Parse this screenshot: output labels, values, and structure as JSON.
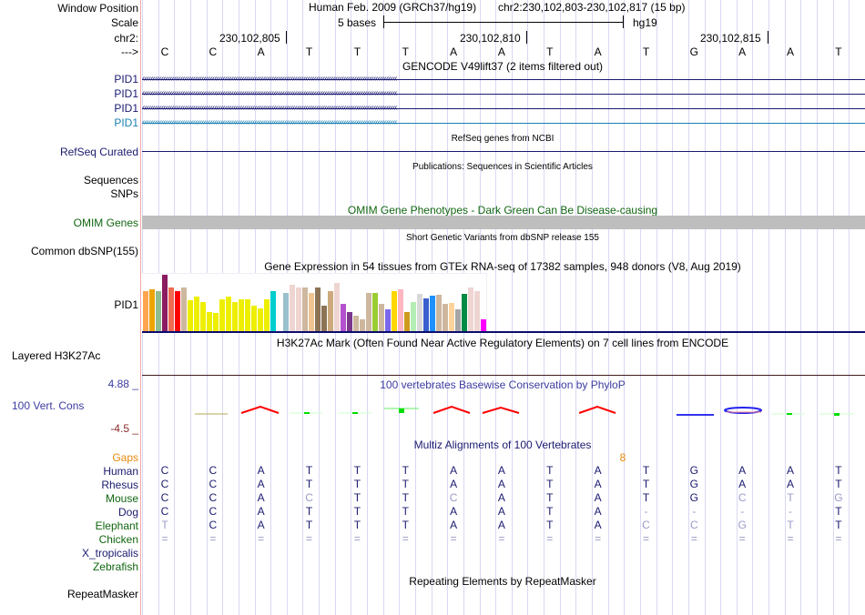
{
  "header": {
    "window_position_label": "Window Position",
    "scale_label": "Scale",
    "chrom_label": "chr2:",
    "strand_label": "--->",
    "assembly_title": "Human Feb. 2009 (GRCh37/hg19)",
    "position": "chr2:230,102,803-230,102,817 (15 bp)",
    "scale_text": "5 bases",
    "scale_db": "hg19",
    "ticks": [
      "230,102,805",
      "230,102,810",
      "230,102,815"
    ],
    "bases": [
      "C",
      "C",
      "A",
      "T",
      "T",
      "T",
      "A",
      "A",
      "T",
      "A",
      "T",
      "G",
      "A",
      "A",
      "T"
    ]
  },
  "tracks": {
    "gencode": {
      "title": "GENCODE V49lift37 (2 items filtered out)",
      "items": [
        "PID1",
        "PID1",
        "PID1",
        "PID1"
      ],
      "strand": "minus"
    },
    "refseq": {
      "label": "RefSeq Curated",
      "title": "RefSeq genes from NCBI"
    },
    "publications": {
      "title": "Publications: Sequences in Scientific Articles",
      "labels": [
        "Sequences",
        "SNPs"
      ]
    },
    "omim": {
      "label": "OMIM Genes",
      "title": "OMIM Gene Phenotypes - Dark Green Can Be Disease-causing"
    },
    "dbsnp": {
      "label": "Common dbSNP(155)",
      "title": "Short Genetic Variants from dbSNP release 155"
    },
    "gtex": {
      "label": "PID1",
      "title": "Gene Expression in 54 tissues from GTEx RNA-seq of 17382 samples, 948 donors (V8, Aug 2019)",
      "bars": [
        {
          "v": 0.72,
          "c": "#ffa54f"
        },
        {
          "v": 0.74,
          "c": "#eea400"
        },
        {
          "v": 0.71,
          "c": "#8fbc8f"
        },
        {
          "v": 1.0,
          "c": "#8b1c62"
        },
        {
          "v": 0.78,
          "c": "#ee6a50"
        },
        {
          "v": 0.71,
          "c": "#ff0000"
        },
        {
          "v": 0.77,
          "c": "#cdb79e"
        },
        {
          "v": 0.56,
          "c": "#eeee00"
        },
        {
          "v": 0.62,
          "c": "#eeee00"
        },
        {
          "v": 0.53,
          "c": "#eeee00"
        },
        {
          "v": 0.35,
          "c": "#eeee00"
        },
        {
          "v": 0.33,
          "c": "#eeee00"
        },
        {
          "v": 0.57,
          "c": "#eeee00"
        },
        {
          "v": 0.62,
          "c": "#eeee00"
        },
        {
          "v": 0.53,
          "c": "#eeee00"
        },
        {
          "v": 0.57,
          "c": "#eeee00"
        },
        {
          "v": 0.57,
          "c": "#eeee00"
        },
        {
          "v": 0.46,
          "c": "#eeee00"
        },
        {
          "v": 0.41,
          "c": "#eeee00"
        },
        {
          "v": 0.57,
          "c": "#eeee00"
        },
        {
          "v": 0.72,
          "c": "#00cdcd"
        },
        {
          "v": 0.0,
          "c": "#ffffff"
        },
        {
          "v": 0.69,
          "c": "#9ac0cd"
        },
        {
          "v": 0.83,
          "c": "#eed5d2"
        },
        {
          "v": 0.78,
          "c": "#eed5d2"
        },
        {
          "v": 0.78,
          "c": "#cdb79e"
        },
        {
          "v": 0.69,
          "c": "#eec591"
        },
        {
          "v": 0.78,
          "c": "#8b7355"
        },
        {
          "v": 0.46,
          "c": "#8b7355"
        },
        {
          "v": 0.72,
          "c": "#cdaa7d"
        },
        {
          "v": 0.85,
          "c": "#eed5d2"
        },
        {
          "v": 0.49,
          "c": "#b452cd"
        },
        {
          "v": 0.35,
          "c": "#7a378b"
        },
        {
          "v": 0.28,
          "c": "#cdb79e"
        },
        {
          "v": 0.22,
          "c": "#cdb79e"
        },
        {
          "v": 0.69,
          "c": "#cdb79e"
        },
        {
          "v": 0.69,
          "c": "#9acd32"
        },
        {
          "v": 0.49,
          "c": "#cdb79e"
        },
        {
          "v": 0.4,
          "c": "#7b68ee"
        },
        {
          "v": 0.72,
          "c": "#ffd700"
        },
        {
          "v": 0.74,
          "c": "#ffb6c1"
        },
        {
          "v": 0.35,
          "c": "#cd9b1d"
        },
        {
          "v": 0.53,
          "c": "#b4eeb4"
        },
        {
          "v": 0.67,
          "c": "#d9d9d9"
        },
        {
          "v": 0.59,
          "c": "#3a5fcd"
        },
        {
          "v": 0.64,
          "c": "#1e90ff"
        },
        {
          "v": 0.65,
          "c": "#cdb79e"
        },
        {
          "v": 0.49,
          "c": "#cdb79e"
        },
        {
          "v": 0.51,
          "c": "#ffd39b"
        },
        {
          "v": 0.4,
          "c": "#a6a6a6"
        },
        {
          "v": 0.67,
          "c": "#008b45"
        },
        {
          "v": 0.77,
          "c": "#eed5d2"
        },
        {
          "v": 0.72,
          "c": "#eed5d2"
        },
        {
          "v": 0.22,
          "c": "#ff00ff"
        }
      ]
    },
    "h3k27ac": {
      "label": "Layered H3K27Ac",
      "title": "H3K27Ac Mark (Often Found Near Active Regulatory Elements) on 7 cell lines from ENCODE"
    },
    "phylop": {
      "label": "100 Vert. Cons",
      "title": "100 vertebrates Basewise Conservation by PhyloP",
      "max": "4.88 _",
      "min": "-4.5 _"
    },
    "multiz": {
      "title": "Multiz Alignments of 100 Vertebrates",
      "gaps_label": "Gaps",
      "gap_count": "8",
      "species": [
        {
          "name": "Human",
          "color": "navy",
          "seq": [
            "C",
            "C",
            "A",
            "T",
            "T",
            "T",
            "A",
            "A",
            "T",
            "A",
            "T",
            "G",
            "A",
            "A",
            "T"
          ],
          "dim": []
        },
        {
          "name": "Rhesus",
          "color": "navy",
          "seq": [
            "C",
            "C",
            "A",
            "T",
            "T",
            "T",
            "A",
            "A",
            "T",
            "A",
            "T",
            "G",
            "A",
            "A",
            "T"
          ],
          "dim": []
        },
        {
          "name": "Mouse",
          "color": "green",
          "seq": [
            "C",
            "C",
            "A",
            "C",
            "T",
            "T",
            "C",
            "A",
            "T",
            "A",
            "T",
            "G",
            "C",
            "T",
            "G"
          ],
          "dim": [
            3,
            6,
            12,
            13,
            14
          ]
        },
        {
          "name": "Dog",
          "color": "navy",
          "seq": [
            "C",
            "C",
            "A",
            "T",
            "T",
            "T",
            "A",
            "A",
            "T",
            "A",
            "-",
            "-",
            "-",
            "-",
            "T"
          ],
          "dim": [
            10,
            11,
            12,
            13
          ]
        },
        {
          "name": "Elephant",
          "color": "green",
          "seq": [
            "T",
            "C",
            "A",
            "T",
            "T",
            "T",
            "A",
            "A",
            "T",
            "A",
            "C",
            "C",
            "G",
            "T",
            "T"
          ],
          "dim": [
            0,
            10,
            11,
            12,
            13
          ]
        },
        {
          "name": "Chicken",
          "color": "green",
          "seq": [
            "=",
            "=",
            "=",
            "=",
            "=",
            "=",
            "=",
            "=",
            "=",
            "=",
            "=",
            "=",
            "=",
            "=",
            "="
          ],
          "dim": [
            0,
            1,
            2,
            3,
            4,
            5,
            6,
            7,
            8,
            9,
            10,
            11,
            12,
            13,
            14
          ]
        },
        {
          "name": "X_tropicalis",
          "color": "navy",
          "seq": [],
          "dim": []
        },
        {
          "name": "Zebrafish",
          "color": "green",
          "seq": [],
          "dim": []
        }
      ]
    },
    "repeatmasker": {
      "label": "RepeatMasker",
      "title": "Repeating Elements by RepeatMasker"
    }
  }
}
